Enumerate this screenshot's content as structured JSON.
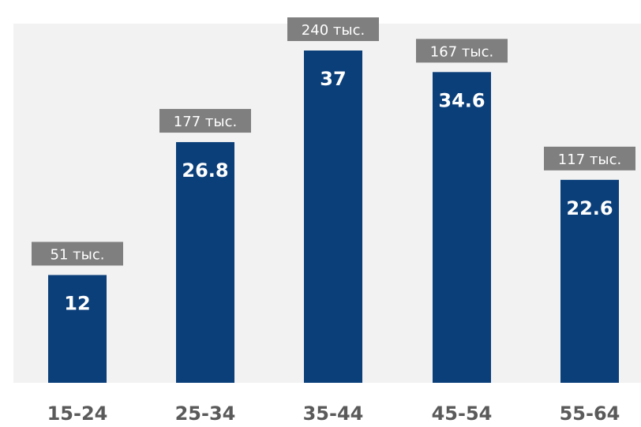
{
  "chart_data": {
    "type": "bar",
    "categories": [
      "15-24",
      "25-34",
      "35-44",
      "45-54",
      "55-64"
    ],
    "values": [
      12,
      26.8,
      37,
      34.6,
      22.6
    ],
    "value_labels": [
      "12",
      "26.8",
      "37",
      "34.6",
      "22.6"
    ],
    "count_labels": [
      "51 тыс.",
      "177 тыс.",
      "240 тыс.",
      "167 тыс.",
      "117 тыс."
    ],
    "ylim": [
      0,
      40
    ],
    "grid": false,
    "legend": "none"
  },
  "colors": {
    "bar": "#0b3f7a",
    "count_box": "#7f7f7f",
    "plot_background": "#f2f2f2",
    "category_text": "#5a5a5a"
  }
}
